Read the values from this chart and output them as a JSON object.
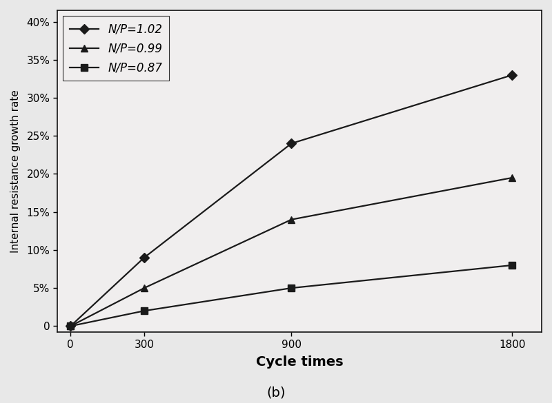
{
  "x": [
    0,
    300,
    900,
    1800
  ],
  "series": [
    {
      "label": "N/P=1.02",
      "y": [
        0.0,
        0.09,
        0.24,
        0.33
      ],
      "marker": "D",
      "color": "#1a1a1a",
      "markersize": 7,
      "linewidth": 1.6
    },
    {
      "label": "N/P=0.99",
      "y": [
        0.0,
        0.05,
        0.14,
        0.195
      ],
      "marker": "^",
      "color": "#1a1a1a",
      "markersize": 7,
      "linewidth": 1.6
    },
    {
      "label": "N/P=0.87",
      "y": [
        0.0,
        0.02,
        0.05,
        0.08
      ],
      "marker": "s",
      "color": "#1a1a1a",
      "markersize": 7,
      "linewidth": 1.6
    }
  ],
  "xlabel": "Cycle times",
  "ylabel": "Internal resistance growth rate",
  "xlabel_fontsize": 14,
  "ylabel_fontsize": 11,
  "xlabel_fontweight": "bold",
  "ytick_values": [
    0.0,
    0.05,
    0.1,
    0.15,
    0.2,
    0.25,
    0.3,
    0.35,
    0.4
  ],
  "ytick_labels": [
    "0",
    "5%",
    "10%",
    "15%",
    "20%",
    "25%",
    "30%",
    "35%",
    "40%"
  ],
  "xticks": [
    0,
    300,
    900,
    1800
  ],
  "ylim": [
    -0.008,
    0.415
  ],
  "xlim": [
    -55,
    1920
  ],
  "caption": "(b)",
  "caption_fontsize": 14,
  "legend_fontsize": 12,
  "background_color": "#e8e8e8",
  "plot_background": "#f0eeee",
  "tick_labelsize": 11
}
